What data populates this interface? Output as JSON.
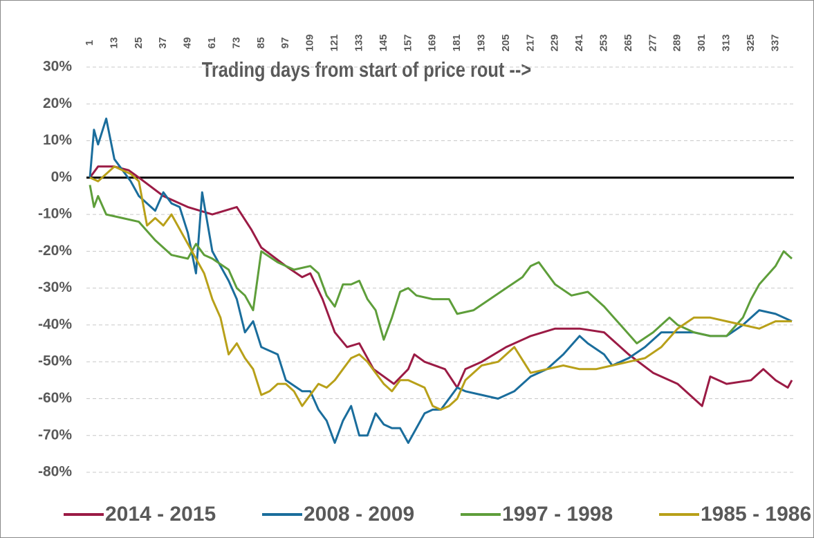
{
  "chart_data": {
    "type": "line",
    "xlabel": "Trading days from start of price rout -->",
    "xlim": [
      1,
      345
    ],
    "xticks": [
      1,
      13,
      25,
      37,
      49,
      61,
      73,
      85,
      97,
      109,
      121,
      133,
      145,
      157,
      169,
      181,
      193,
      205,
      217,
      229,
      241,
      253,
      265,
      277,
      289,
      301,
      313,
      325,
      337
    ],
    "ylim": [
      -80,
      30
    ],
    "yticks": [
      {
        "value": 30,
        "label": "30%"
      },
      {
        "value": 20,
        "label": "20%"
      },
      {
        "value": 10,
        "label": "10%"
      },
      {
        "value": 0,
        "label": "0%"
      },
      {
        "value": -10,
        "label": "-10%"
      },
      {
        "value": -20,
        "label": "-20%"
      },
      {
        "value": -30,
        "label": "-30%"
      },
      {
        "value": -40,
        "label": "-40%"
      },
      {
        "value": -50,
        "label": "-50%"
      },
      {
        "value": -60,
        "label": "-60%"
      },
      {
        "value": -70,
        "label": "-70%"
      },
      {
        "value": -80,
        "label": "-80%"
      }
    ],
    "grid": true,
    "legend": "bottom",
    "series": [
      {
        "name": "2014 - 2015",
        "color": "#9b1b45",
        "x": [
          1,
          5,
          13,
          20,
          25,
          37,
          49,
          61,
          73,
          80,
          85,
          97,
          105,
          109,
          115,
          121,
          127,
          133,
          140,
          150,
          157,
          160,
          165,
          175,
          181,
          185,
          193,
          205,
          217,
          229,
          241,
          253,
          265,
          277,
          289,
          295,
          301,
          305,
          313,
          325,
          331,
          337,
          343,
          345
        ],
        "values": [
          0,
          3,
          3,
          2,
          0,
          -5,
          -8,
          -10,
          -8,
          -14,
          -19,
          -24,
          -27,
          -26,
          -33,
          -42,
          -46,
          -45,
          -52,
          -56,
          -52,
          -48,
          -50,
          -52,
          -57,
          -52,
          -50,
          -46,
          -43,
          -41,
          -41,
          -42,
          -48,
          -53,
          -56,
          -59,
          -62,
          -54,
          -56,
          -55,
          -52,
          -55,
          -57,
          -55
        ]
      },
      {
        "name": "2008 - 2009",
        "color": "#1a6d9c",
        "x": [
          1,
          3,
          5,
          9,
          13,
          17,
          21,
          25,
          33,
          37,
          41,
          45,
          49,
          53,
          56,
          61,
          65,
          69,
          73,
          77,
          81,
          85,
          93,
          97,
          105,
          109,
          113,
          117,
          121,
          125,
          129,
          133,
          137,
          141,
          145,
          149,
          153,
          157,
          161,
          165,
          169,
          173,
          177,
          181,
          185,
          193,
          201,
          209,
          217,
          225,
          233,
          241,
          245,
          253,
          257,
          265,
          273,
          281,
          289,
          297,
          305,
          313,
          321,
          329,
          337,
          345
        ],
        "values": [
          0,
          13,
          9,
          16,
          5,
          2,
          -1,
          -5,
          -9,
          -4,
          -7,
          -8,
          -15,
          -26,
          -4,
          -20,
          -24,
          -28,
          -33,
          -42,
          -39,
          -46,
          -48,
          -55,
          -58,
          -58,
          -63,
          -66,
          -72,
          -66,
          -62,
          -70,
          -70,
          -64,
          -67,
          -68,
          -68,
          -72,
          -68,
          -64,
          -63,
          -63,
          -60,
          -57,
          -58,
          -59,
          -60,
          -58,
          -54,
          -52,
          -48,
          -43,
          -45,
          -48,
          -51,
          -49,
          -46,
          -42,
          -42,
          -42,
          -43,
          -43,
          -40,
          -36,
          -37,
          -39
        ]
      },
      {
        "name": "1997 - 1998",
        "color": "#5e9e3a",
        "x": [
          1,
          3,
          5,
          9,
          17,
          25,
          33,
          41,
          49,
          53,
          57,
          61,
          69,
          73,
          77,
          81,
          85,
          93,
          101,
          109,
          113,
          117,
          121,
          125,
          129,
          133,
          137,
          141,
          145,
          149,
          153,
          157,
          161,
          169,
          177,
          181,
          189,
          197,
          205,
          213,
          217,
          221,
          229,
          237,
          245,
          253,
          261,
          269,
          277,
          285,
          289,
          293,
          297,
          305,
          313,
          321,
          325,
          329,
          337,
          341,
          345
        ],
        "values": [
          -2,
          -8,
          -5,
          -10,
          -11,
          -12,
          -17,
          -21,
          -22,
          -18,
          -21,
          -22,
          -25,
          -30,
          -32,
          -36,
          -20,
          -23,
          -25,
          -24,
          -26,
          -32,
          -35,
          -29,
          -29,
          -28,
          -33,
          -36,
          -44,
          -38,
          -31,
          -30,
          -32,
          -33,
          -33,
          -37,
          -36,
          -33,
          -30,
          -27,
          -24,
          -23,
          -29,
          -32,
          -31,
          -35,
          -40,
          -45,
          -42,
          -38,
          -40,
          -41,
          -42,
          -43,
          -43,
          -38,
          -33,
          -29,
          -24,
          -20,
          -22
        ]
      },
      {
        "name": "1985 - 1986",
        "color": "#b8a019",
        "x": [
          1,
          5,
          9,
          13,
          17,
          21,
          25,
          29,
          33,
          37,
          41,
          45,
          49,
          53,
          57,
          61,
          65,
          69,
          73,
          77,
          81,
          85,
          89,
          93,
          97,
          101,
          105,
          109,
          113,
          117,
          121,
          125,
          129,
          133,
          137,
          141,
          145,
          149,
          153,
          157,
          161,
          165,
          169,
          173,
          177,
          181,
          185,
          193,
          201,
          209,
          217,
          225,
          233,
          241,
          249,
          257,
          265,
          273,
          281,
          289,
          297,
          305,
          313,
          321,
          329,
          337,
          345
        ],
        "values": [
          0,
          -1,
          1,
          3,
          2,
          1,
          -1,
          -13,
          -11,
          -13,
          -10,
          -14,
          -18,
          -22,
          -26,
          -33,
          -38,
          -48,
          -45,
          -49,
          -52,
          -59,
          -58,
          -56,
          -56,
          -58,
          -62,
          -59,
          -56,
          -57,
          -55,
          -52,
          -49,
          -48,
          -50,
          -53,
          -56,
          -58,
          -55,
          -55,
          -56,
          -57,
          -62,
          -63,
          -62,
          -60,
          -55,
          -51,
          -50,
          -46,
          -53,
          -52,
          -51,
          -52,
          -52,
          -51,
          -50,
          -49,
          -46,
          -41,
          -38,
          -38,
          -39,
          -40,
          -41,
          -39,
          -39
        ]
      }
    ]
  }
}
